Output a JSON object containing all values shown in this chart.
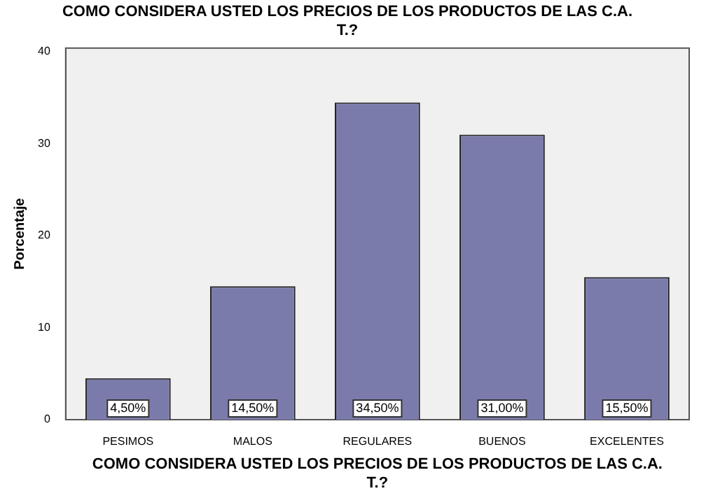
{
  "chart_data": {
    "type": "bar",
    "title": "COMO CONSIDERA USTED LOS PRECIOS DE LOS PRODUCTOS DE LAS C.A. T.?",
    "xlabel": "COMO CONSIDERA USTED LOS PRECIOS DE LOS PRODUCTOS DE LAS C.A. T.?",
    "ylabel": "Porcentaje",
    "categories": [
      "PESIMOS",
      "MALOS",
      "REGULARES",
      "BUENOS",
      "EXCELENTES"
    ],
    "values": [
      4.5,
      14.5,
      34.5,
      31.0,
      15.5
    ],
    "value_labels": [
      "4,50%",
      "14,50%",
      "34,50%",
      "31,00%",
      "15,50%"
    ],
    "color": "#7b7bab",
    "ylim": [
      0,
      40.4
    ],
    "yticks": [
      0,
      10,
      20,
      30,
      40
    ],
    "grid": false,
    "legend": false
  }
}
